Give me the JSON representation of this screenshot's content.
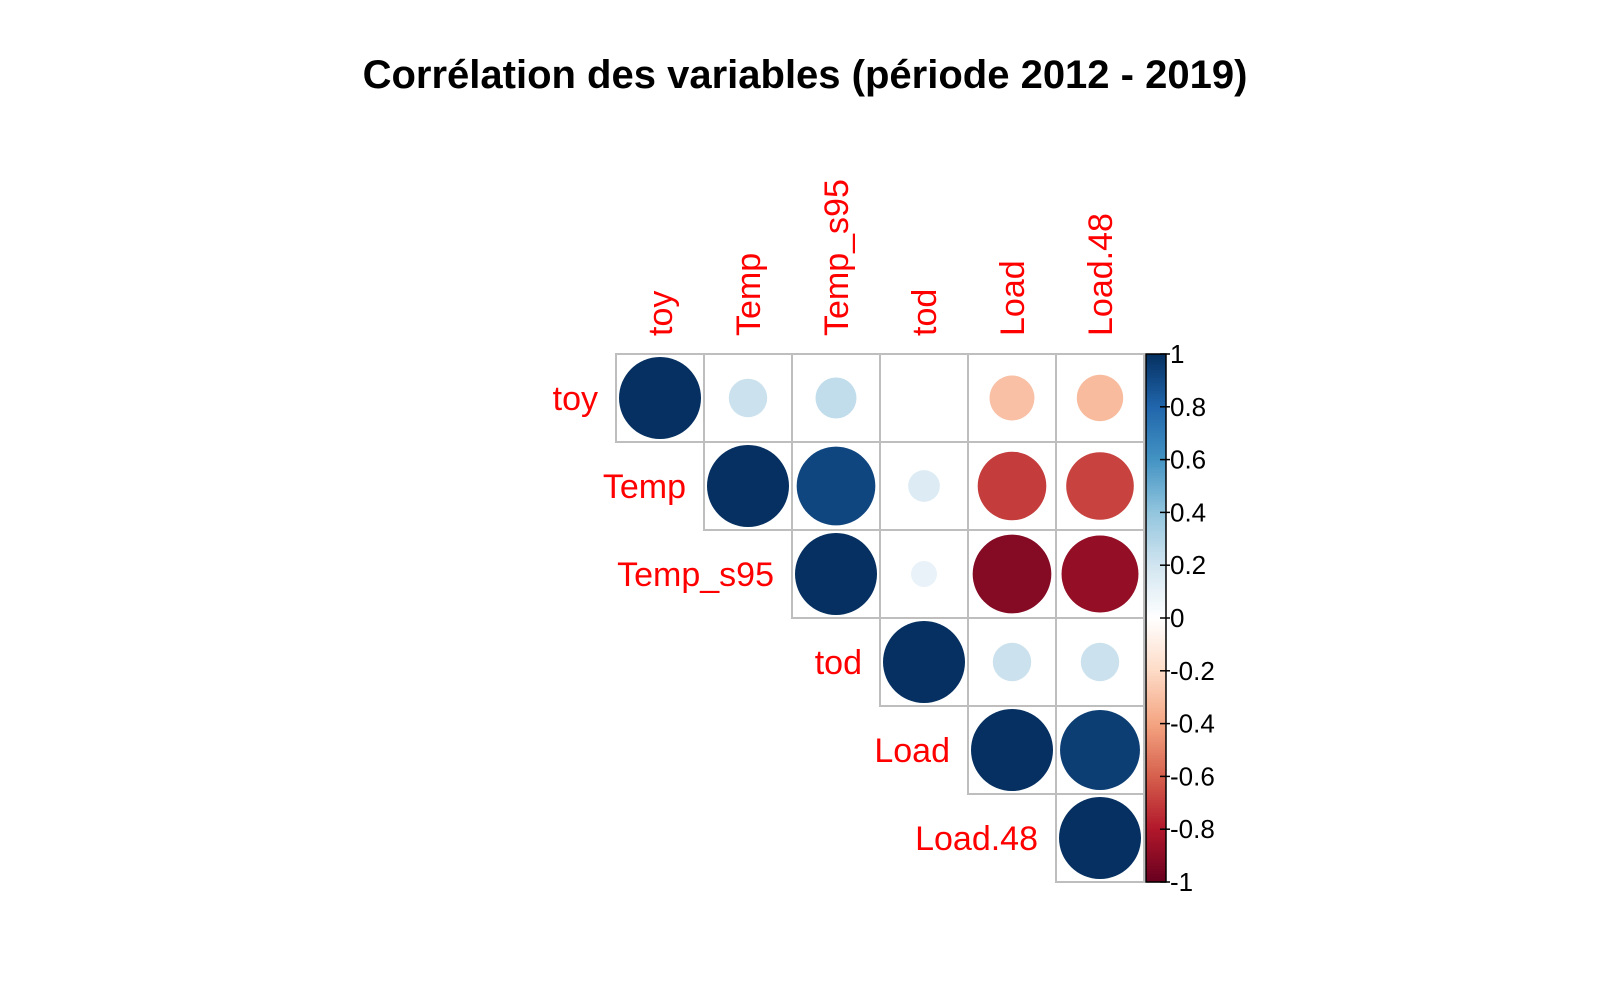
{
  "chart_data": {
    "type": "heatmap",
    "style": "corrplot-upper-circles",
    "title": "Corrélation des variables (période 2012 - 2019)",
    "variables": [
      "toy",
      "Temp",
      "Temp_s95",
      "tod",
      "Load",
      "Load.48"
    ],
    "matrix": [
      [
        1.0,
        0.22,
        0.25,
        0.0,
        -0.3,
        -0.32
      ],
      [
        0.22,
        1.0,
        0.92,
        0.15,
        -0.7,
        -0.68
      ],
      [
        0.25,
        0.92,
        1.0,
        0.1,
        -0.92,
        -0.88
      ],
      [
        0.0,
        0.15,
        0.1,
        1.0,
        0.22,
        0.22
      ],
      [
        -0.3,
        -0.7,
        -0.92,
        0.22,
        1.0,
        0.95
      ],
      [
        -0.32,
        -0.68,
        -0.88,
        0.22,
        0.95,
        1.0
      ]
    ],
    "colorbar": {
      "range": [
        -1,
        1
      ],
      "ticks": [
        "1",
        "0.8",
        "0.6",
        "0.4",
        "0.2",
        "0",
        "-0.2",
        "-0.4",
        "-0.6",
        "-0.8",
        "-1"
      ]
    },
    "label_color": "#ff0000",
    "grid_color": "#bebebe",
    "palette": [
      "#67001f",
      "#b2182b",
      "#d6604d",
      "#f4a582",
      "#fddbc7",
      "#ffffff",
      "#d1e5f0",
      "#92c5de",
      "#4393c3",
      "#2166ac",
      "#053061"
    ]
  }
}
